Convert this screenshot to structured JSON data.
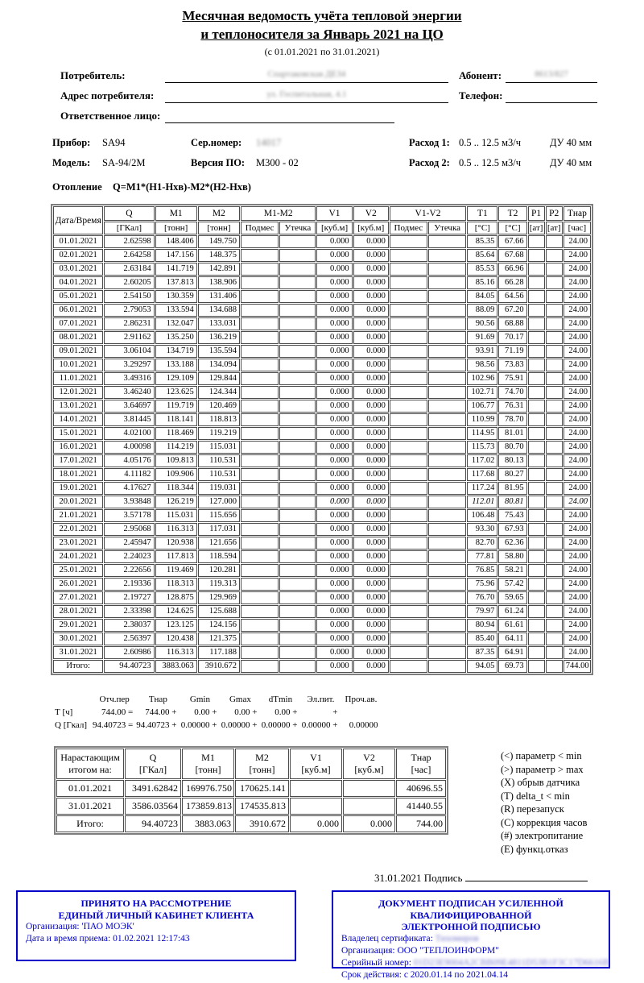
{
  "title": {
    "line1": "Месячная ведомость учёта тепловой энергии",
    "line2": "и теплоносителя за Январь 2021 на ЦО",
    "subtitle": "(с 01.01.2021 по 31.01.2021)"
  },
  "fields": {
    "consumer_label": "Потребитель:",
    "consumer_value_redacted": "Спартаковская ДЕЗ4",
    "abonent_label": "Абонент:",
    "abonent_value_redacted": "8613/827",
    "address_label": "Адрес потребителя:",
    "address_value_redacted": "ул. Госпитальная, 4.1",
    "phone_label": "Телефон:",
    "phone_value": "",
    "responsible_label": "Ответственное лицо:",
    "responsible_value": ""
  },
  "device": {
    "pribor_label": "Прибор:",
    "pribor": "SA94",
    "serial_label": "Сер.номер:",
    "serial_redacted": "14017",
    "flow1_label": "Расход 1:",
    "flow1": "0.5 .. 12.5 м3/ч",
    "du1": "ДУ 40 мм",
    "model_label": "Модель:",
    "model": "SA-94/2M",
    "firmware_label": "Версия ПО:",
    "firmware": "M300 - 02",
    "flow2_label": "Расход 2:",
    "flow2": "0.5 .. 12.5 м3/ч",
    "du2": "ДУ 40 мм"
  },
  "heating": {
    "label": "Отопление",
    "formula": "Q=M1*(H1-Hхв)-M2*(H2-Hхв)"
  },
  "main_table": {
    "header_row1": [
      {
        "label": "Дата/Время",
        "rowspan": 2
      },
      {
        "label": "Q"
      },
      {
        "label": "M1"
      },
      {
        "label": "M2"
      },
      {
        "label": "M1-M2",
        "colspan": 2
      },
      {
        "label": "V1"
      },
      {
        "label": "V2"
      },
      {
        "label": "V1-V2",
        "colspan": 2
      },
      {
        "label": "T1"
      },
      {
        "label": "T2"
      },
      {
        "label": "P1"
      },
      {
        "label": "P2"
      },
      {
        "label": "Тнар"
      }
    ],
    "header_row2": [
      "[ГКал]",
      "[тонн]",
      "[тонн]",
      "Подмес",
      "Утечка",
      "[куб.м]",
      "[куб.м]",
      "Подмес",
      "Утечка",
      "[°C]",
      "[°C]",
      "[ат]",
      "[ат]",
      "[час]"
    ],
    "italic_from": {
      "date": "20.01.2021",
      "col": 4
    },
    "rows": [
      [
        "01.01.2021",
        "2.62598",
        "148.406",
        "149.750",
        "",
        "",
        "0.000",
        "0.000",
        "",
        "",
        "85.35",
        "67.66",
        "",
        "",
        "24.00"
      ],
      [
        "02.01.2021",
        "2.64258",
        "147.156",
        "148.375",
        "",
        "",
        "0.000",
        "0.000",
        "",
        "",
        "85.64",
        "67.68",
        "",
        "",
        "24.00"
      ],
      [
        "03.01.2021",
        "2.63184",
        "141.719",
        "142.891",
        "",
        "",
        "0.000",
        "0.000",
        "",
        "",
        "85.53",
        "66.96",
        "",
        "",
        "24.00"
      ],
      [
        "04.01.2021",
        "2.60205",
        "137.813",
        "138.906",
        "",
        "",
        "0.000",
        "0.000",
        "",
        "",
        "85.16",
        "66.28",
        "",
        "",
        "24.00"
      ],
      [
        "05.01.2021",
        "2.54150",
        "130.359",
        "131.406",
        "",
        "",
        "0.000",
        "0.000",
        "",
        "",
        "84.05",
        "64.56",
        "",
        "",
        "24.00"
      ],
      [
        "06.01.2021",
        "2.79053",
        "133.594",
        "134.688",
        "",
        "",
        "0.000",
        "0.000",
        "",
        "",
        "88.09",
        "67.20",
        "",
        "",
        "24.00"
      ],
      [
        "07.01.2021",
        "2.86231",
        "132.047",
        "133.031",
        "",
        "",
        "0.000",
        "0.000",
        "",
        "",
        "90.56",
        "68.88",
        "",
        "",
        "24.00"
      ],
      [
        "08.01.2021",
        "2.91162",
        "135.250",
        "136.219",
        "",
        "",
        "0.000",
        "0.000",
        "",
        "",
        "91.69",
        "70.17",
        "",
        "",
        "24.00"
      ],
      [
        "09.01.2021",
        "3.06104",
        "134.719",
        "135.594",
        "",
        "",
        "0.000",
        "0.000",
        "",
        "",
        "93.91",
        "71.19",
        "",
        "",
        "24.00"
      ],
      [
        "10.01.2021",
        "3.29297",
        "133.188",
        "134.094",
        "",
        "",
        "0.000",
        "0.000",
        "",
        "",
        "98.56",
        "73.83",
        "",
        "",
        "24.00"
      ],
      [
        "11.01.2021",
        "3.49316",
        "129.109",
        "129.844",
        "",
        "",
        "0.000",
        "0.000",
        "",
        "",
        "102.96",
        "75.91",
        "",
        "",
        "24.00"
      ],
      [
        "12.01.2021",
        "3.46240",
        "123.625",
        "124.344",
        "",
        "",
        "0.000",
        "0.000",
        "",
        "",
        "102.71",
        "74.70",
        "",
        "",
        "24.00"
      ],
      [
        "13.01.2021",
        "3.64697",
        "119.719",
        "120.469",
        "",
        "",
        "0.000",
        "0.000",
        "",
        "",
        "106.77",
        "76.31",
        "",
        "",
        "24.00"
      ],
      [
        "14.01.2021",
        "3.81445",
        "118.141",
        "118.813",
        "",
        "",
        "0.000",
        "0.000",
        "",
        "",
        "110.99",
        "78.70",
        "",
        "",
        "24.00"
      ],
      [
        "15.01.2021",
        "4.02100",
        "118.469",
        "119.219",
        "",
        "",
        "0.000",
        "0.000",
        "",
        "",
        "114.95",
        "81.01",
        "",
        "",
        "24.00"
      ],
      [
        "16.01.2021",
        "4.00098",
        "114.219",
        "115.031",
        "",
        "",
        "0.000",
        "0.000",
        "",
        "",
        "115.73",
        "80.70",
        "",
        "",
        "24.00"
      ],
      [
        "17.01.2021",
        "4.05176",
        "109.813",
        "110.531",
        "",
        "",
        "0.000",
        "0.000",
        "",
        "",
        "117.02",
        "80.13",
        "",
        "",
        "24.00"
      ],
      [
        "18.01.2021",
        "4.11182",
        "109.906",
        "110.531",
        "",
        "",
        "0.000",
        "0.000",
        "",
        "",
        "117.68",
        "80.27",
        "",
        "",
        "24.00"
      ],
      [
        "19.01.2021",
        "4.17627",
        "118.344",
        "119.031",
        "",
        "",
        "0.000",
        "0.000",
        "",
        "",
        "117.24",
        "81.95",
        "",
        "",
        "24.00"
      ],
      [
        "20.01.2021",
        "3.93848",
        "126.219",
        "127.000",
        "",
        "",
        "0.000",
        "0.000",
        "",
        "",
        "112.01",
        "80.81",
        "",
        "",
        "24.00"
      ],
      [
        "21.01.2021",
        "3.57178",
        "115.031",
        "115.656",
        "",
        "",
        "0.000",
        "0.000",
        "",
        "",
        "106.48",
        "75.43",
        "",
        "",
        "24.00"
      ],
      [
        "22.01.2021",
        "2.95068",
        "116.313",
        "117.031",
        "",
        "",
        "0.000",
        "0.000",
        "",
        "",
        "93.30",
        "67.93",
        "",
        "",
        "24.00"
      ],
      [
        "23.01.2021",
        "2.45947",
        "120.938",
        "121.656",
        "",
        "",
        "0.000",
        "0.000",
        "",
        "",
        "82.70",
        "62.36",
        "",
        "",
        "24.00"
      ],
      [
        "24.01.2021",
        "2.24023",
        "117.813",
        "118.594",
        "",
        "",
        "0.000",
        "0.000",
        "",
        "",
        "77.81",
        "58.80",
        "",
        "",
        "24.00"
      ],
      [
        "25.01.2021",
        "2.22656",
        "119.469",
        "120.281",
        "",
        "",
        "0.000",
        "0.000",
        "",
        "",
        "76.85",
        "58.21",
        "",
        "",
        "24.00"
      ],
      [
        "26.01.2021",
        "2.19336",
        "118.313",
        "119.313",
        "",
        "",
        "0.000",
        "0.000",
        "",
        "",
        "75.96",
        "57.42",
        "",
        "",
        "24.00"
      ],
      [
        "27.01.2021",
        "2.19727",
        "128.875",
        "129.969",
        "",
        "",
        "0.000",
        "0.000",
        "",
        "",
        "76.70",
        "59.65",
        "",
        "",
        "24.00"
      ],
      [
        "28.01.2021",
        "2.33398",
        "124.625",
        "125.688",
        "",
        "",
        "0.000",
        "0.000",
        "",
        "",
        "79.97",
        "61.24",
        "",
        "",
        "24.00"
      ],
      [
        "29.01.2021",
        "2.38037",
        "123.125",
        "124.156",
        "",
        "",
        "0.000",
        "0.000",
        "",
        "",
        "80.94",
        "61.61",
        "",
        "",
        "24.00"
      ],
      [
        "30.01.2021",
        "2.56397",
        "120.438",
        "121.375",
        "",
        "",
        "0.000",
        "0.000",
        "",
        "",
        "85.40",
        "64.11",
        "",
        "",
        "24.00"
      ],
      [
        "31.01.2021",
        "2.60986",
        "116.313",
        "117.188",
        "",
        "",
        "0.000",
        "0.000",
        "",
        "",
        "87.35",
        "64.91",
        "",
        "",
        "24.00"
      ]
    ],
    "totals": [
      "Итого:",
      "94.40723",
      "3883.063",
      "3910.672",
      "",
      "",
      "0.000",
      "0.000",
      "",
      "",
      "94.05",
      "69.73",
      "",
      "",
      "744.00"
    ]
  },
  "summary": {
    "headers": [
      "Отч.пер",
      "Тнар",
      "Gmin",
      "Gmax",
      "dTmin",
      "Эл.пит.",
      "Проч.ав."
    ],
    "rows": [
      {
        "label": "Т [ч]",
        "values": [
          "744.00 =",
          "744.00 +",
          "0.00 +",
          "0.00 +",
          "0.00 +",
          "+",
          ""
        ]
      },
      {
        "label": "Q [Гкал]",
        "values": [
          "94.40723 =",
          "94.40723 +",
          "0.00000 +",
          "0.00000 +",
          "0.00000 +",
          "0.00000 +",
          "0.00000"
        ]
      }
    ]
  },
  "cumulative_table": {
    "headers": [
      {
        "l1": "Нарастающим",
        "l2": "итогом на:"
      },
      {
        "l1": "Q",
        "l2": "[ГКал]"
      },
      {
        "l1": "M1",
        "l2": "[тонн]"
      },
      {
        "l1": "M2",
        "l2": "[тонн]"
      },
      {
        "l1": "V1",
        "l2": "[куб.м]"
      },
      {
        "l1": "V2",
        "l2": "[куб.м]"
      },
      {
        "l1": "Тнар",
        "l2": "[час]"
      }
    ],
    "rows": [
      [
        "01.01.2021",
        "3491.62842",
        "169976.750",
        "170625.141",
        "",
        "",
        "40696.55"
      ],
      [
        "31.01.2021",
        "3586.03564",
        "173859.813",
        "174535.813",
        "",
        "",
        "41440.55"
      ]
    ],
    "totals": [
      "Итого:",
      "94.40723",
      "3883.063",
      "3910.672",
      "0.000",
      "0.000",
      "744.00"
    ]
  },
  "legend": [
    "(<)  параметр < min",
    "(>)  параметр > max",
    "(X)  обрыв датчика",
    "(T)  delta_t < min",
    "(R)  перезапуск",
    "(C)  коррекция часов",
    "(#)  электропитание",
    "(E)  функц.отказ"
  ],
  "sign": {
    "date": "31.01.2021",
    "label": "Подпись"
  },
  "left_box": {
    "title1": "ПРИНЯТО НА РАССМОТРЕНИЕ",
    "title2": "ЕДИНЫЙ ЛИЧНЫЙ КАБИНЕТ КЛИЕНТА",
    "line1": "Организация: 'ПАО МОЭК'",
    "line2": "Дата и время приема: 01.02.2021 12:17:43"
  },
  "right_box": {
    "title1": "ДОКУМЕНТ ПОДПИСАН УСИЛЕННОЙ КВАЛИФИЦИРОВАННОЙ",
    "title2": "ЭЛЕКТРОННОЙ ПОДПИСЬЮ",
    "owner_label": "Владелец сертификата:",
    "owner_redacted": "Тихомиров",
    "org_line": "Организация: ООО \"ТЕПЛОИНФОРМ\"",
    "serial_label": "Серийный номер:",
    "serial_redacted": "01D23E9004A2CBB09E4811D53B1F3C17D6616B",
    "validity_line": "Срок действия: с 2020.01.14 по 2021.04.14"
  },
  "colors": {
    "accent_blue": "#0000c8",
    "grid_outer": "#7e7e7e",
    "grid_inner": "#4a4a4a"
  }
}
